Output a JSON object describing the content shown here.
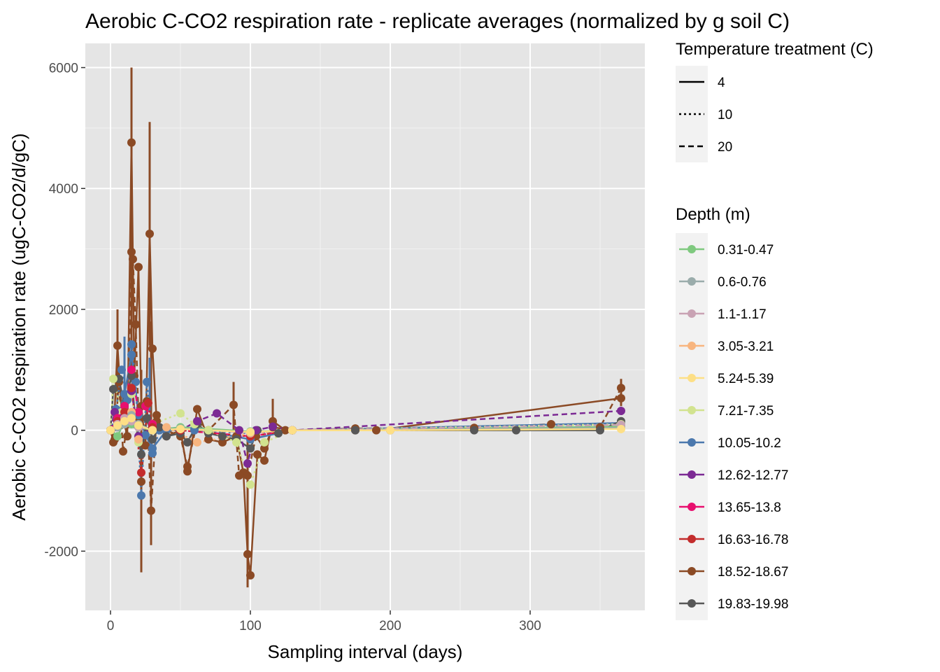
{
  "chart_data": {
    "type": "line",
    "title": "Aerobic C-CO2 respiration rate - replicate averages (normalized by g soil C)",
    "xlabel": "Sampling interval (days)",
    "ylabel": "Aerobic C-CO2 respiration rate (ugC-CO2/d/gC)",
    "xlim": [
      -18,
      382
    ],
    "ylim": [
      -2980,
      6400
    ],
    "x_ticks": [
      0,
      100,
      200,
      300
    ],
    "y_ticks": [
      -2000,
      0,
      2000,
      4000,
      6000
    ],
    "x_tick_labels": [
      "0",
      "100",
      "200",
      "300"
    ],
    "y_tick_labels": [
      "-2000",
      "0",
      "2000",
      "4000",
      "6000"
    ],
    "grid": true,
    "legend_position": "right",
    "linetype_legend": {
      "title": "Temperature treatment (C)",
      "entries": [
        {
          "label": "4",
          "dash": "solid"
        },
        {
          "label": "10",
          "dash": "dotted"
        },
        {
          "label": "20",
          "dash": "dashed"
        }
      ]
    },
    "color_legend": {
      "title": "Depth (m)",
      "entries": [
        {
          "label": "0.31-0.47",
          "color": "#7fc97f"
        },
        {
          "label": "0.6-0.76",
          "color": "#9aacab"
        },
        {
          "label": "1.1-1.17",
          "color": "#c9a3b4"
        },
        {
          "label": "3.05-3.21",
          "color": "#f8b57f"
        },
        {
          "label": "5.24-5.39",
          "color": "#fddf86"
        },
        {
          "label": "7.21-7.35",
          "color": "#d2e38f"
        },
        {
          "label": "10.05-10.2",
          "color": "#4b78ad"
        },
        {
          "label": "12.62-12.77",
          "color": "#7c2a94"
        },
        {
          "label": "13.65-13.8",
          "color": "#e8106f"
        },
        {
          "label": "16.63-16.78",
          "color": "#c32c2c"
        },
        {
          "label": "18.52-18.67",
          "color": "#8b4a25"
        },
        {
          "label": "19.83-19.98",
          "color": "#575757"
        }
      ]
    },
    "series": [
      {
        "name": "18.52-18.67",
        "temperature": "4",
        "color": "#8b4a25",
        "x": [
          0,
          2,
          5,
          8,
          12,
          15,
          17,
          20,
          22,
          25,
          28,
          30,
          33,
          40,
          50,
          55,
          62,
          70,
          80,
          90,
          95,
          98,
          100,
          105,
          110,
          116,
          125,
          130,
          175,
          190,
          365
        ],
        "y": [
          0,
          -200,
          1400,
          300,
          -100,
          4760,
          900,
          2700,
          400,
          -250,
          3250,
          1350,
          150,
          -100,
          0,
          -680,
          350,
          -150,
          -200,
          -100,
          -700,
          -2050,
          -2400,
          -400,
          -500,
          150,
          0,
          0,
          0,
          0,
          530
        ]
      },
      {
        "name": "18.52-18.67",
        "temperature": "20",
        "color": "#8b4a25",
        "x": [
          0,
          3,
          6,
          9,
          12,
          15,
          16,
          18,
          20,
          22,
          26,
          29,
          33,
          40,
          50,
          55,
          62,
          70,
          88,
          92,
          98,
          104,
          110,
          116,
          130,
          175,
          260,
          315,
          350,
          365
        ],
        "y": [
          0,
          -150,
          800,
          -350,
          100,
          2950,
          2830,
          1750,
          200,
          -850,
          480,
          -1330,
          250,
          0,
          -100,
          -600,
          150,
          0,
          420,
          -750,
          -750,
          -100,
          -300,
          50,
          0,
          30,
          40,
          100,
          50,
          700
        ]
      },
      {
        "name": "10.05-10.2",
        "temperature": "10",
        "color": "#4b78ad",
        "x": [
          0,
          4,
          8,
          12,
          15,
          18,
          22,
          26,
          30,
          35,
          60,
          100,
          130,
          365
        ],
        "y": [
          0,
          350,
          1000,
          500,
          1420,
          800,
          -1080,
          800,
          -380,
          0,
          0,
          -50,
          0,
          100
        ]
      },
      {
        "name": "10.05-10.2",
        "temperature": "4",
        "color": "#4b78ad",
        "x": [
          0,
          5,
          10,
          15,
          20,
          25,
          30,
          40,
          60,
          100,
          130,
          365
        ],
        "y": [
          0,
          200,
          600,
          1250,
          250,
          -80,
          -300,
          0,
          20,
          -150,
          0,
          120
        ]
      },
      {
        "name": "19.83-19.98",
        "temperature": "4",
        "color": "#575757",
        "x": [
          0,
          2,
          6,
          10,
          15,
          18,
          22,
          26,
          30,
          35,
          40,
          50,
          55,
          62,
          70,
          80,
          90,
          100,
          105,
          120,
          130,
          175,
          200,
          260,
          290,
          350,
          365
        ],
        "y": [
          0,
          680,
          850,
          400,
          900,
          100,
          -400,
          200,
          -150,
          50,
          -100,
          -50,
          -200,
          100,
          -50,
          -100,
          -150,
          -300,
          0,
          -50,
          0,
          0,
          0,
          0,
          0,
          0,
          150
        ]
      },
      {
        "name": "7.21-7.35",
        "temperature": "10",
        "color": "#d2e38f",
        "x": [
          0,
          2,
          8,
          15,
          20,
          30,
          50,
          60,
          70,
          90,
          100,
          110,
          130,
          365
        ],
        "y": [
          0,
          850,
          300,
          600,
          -200,
          100,
          280,
          100,
          0,
          -200,
          -900,
          -200,
          0,
          100
        ]
      },
      {
        "name": "12.62-12.77",
        "temperature": "20",
        "color": "#7c2a94",
        "x": [
          0,
          3,
          8,
          15,
          20,
          30,
          50,
          62,
          76,
          92,
          98,
          104,
          116,
          130,
          365
        ],
        "y": [
          0,
          300,
          200,
          650,
          -100,
          50,
          0,
          150,
          280,
          0,
          -550,
          0,
          60,
          0,
          320
        ]
      },
      {
        "name": "13.65-13.8",
        "temperature": "20",
        "color": "#e8106f",
        "x": [
          0,
          5,
          10,
          15,
          20,
          25,
          30,
          50,
          100,
          130,
          365
        ],
        "y": [
          0,
          200,
          400,
          1000,
          300,
          400,
          100,
          0,
          -100,
          0,
          50
        ]
      },
      {
        "name": "16.63-16.78",
        "temperature": "10",
        "color": "#c32c2c",
        "x": [
          0,
          5,
          10,
          15,
          22,
          27,
          30,
          50,
          100,
          130,
          365
        ],
        "y": [
          0,
          150,
          300,
          700,
          -700,
          450,
          50,
          0,
          -100,
          0,
          60
        ]
      },
      {
        "name": "3.05-3.21",
        "temperature": "10",
        "color": "#f8b57f",
        "x": [
          0,
          5,
          10,
          15,
          20,
          30,
          40,
          62,
          100,
          130,
          200,
          365
        ],
        "y": [
          0,
          100,
          200,
          300,
          -150,
          0,
          50,
          -200,
          -50,
          0,
          0,
          30
        ]
      },
      {
        "name": "0.31-0.47",
        "temperature": "4",
        "color": "#7fc97f",
        "x": [
          0,
          5,
          10,
          15,
          20,
          30,
          50,
          100,
          130,
          365
        ],
        "y": [
          0,
          -100,
          150,
          100,
          50,
          0,
          50,
          -20,
          0,
          60
        ]
      },
      {
        "name": "0.6-0.76",
        "temperature": "4",
        "color": "#9aacab",
        "x": [
          0,
          5,
          10,
          15,
          20,
          30,
          50,
          100,
          130,
          365
        ],
        "y": [
          0,
          50,
          100,
          250,
          100,
          0,
          30,
          -30,
          0,
          40
        ]
      },
      {
        "name": "1.1-1.17",
        "temperature": "20",
        "color": "#c9a3b4",
        "x": [
          0,
          5,
          10,
          15,
          20,
          30,
          50,
          100,
          130,
          365
        ],
        "y": [
          0,
          100,
          200,
          150,
          50,
          0,
          20,
          -40,
          0,
          90
        ]
      },
      {
        "name": "5.24-5.39",
        "temperature": "4",
        "color": "#fddf86",
        "x": [
          0,
          5,
          10,
          15,
          20,
          30,
          50,
          100,
          130,
          200,
          365
        ],
        "y": [
          0,
          80,
          150,
          200,
          80,
          0,
          20,
          -30,
          0,
          0,
          20
        ]
      }
    ],
    "error_bars": [
      {
        "x": 15,
        "low": 800,
        "high": 6000,
        "color": "#8b4a25"
      },
      {
        "x": 28,
        "low": 1400,
        "high": 5100,
        "color": "#8b4a25"
      },
      {
        "x": 22,
        "low": -2350,
        "high": 1000,
        "color": "#8b4a25"
      },
      {
        "x": 29,
        "low": -1900,
        "high": 1800,
        "color": "#8b4a25"
      },
      {
        "x": 5,
        "low": 500,
        "high": 2000,
        "color": "#8b4a25"
      },
      {
        "x": 98,
        "low": -2600,
        "high": 0,
        "color": "#8b4a25"
      },
      {
        "x": 10,
        "low": 200,
        "high": 1550,
        "color": "#4b78ad"
      },
      {
        "x": 28,
        "low": 300,
        "high": 1200,
        "color": "#4b78ad"
      },
      {
        "x": 88,
        "low": 0,
        "high": 800,
        "color": "#8b4a25"
      },
      {
        "x": 116,
        "low": 0,
        "high": 520,
        "color": "#8b4a25"
      },
      {
        "x": 365,
        "low": 400,
        "high": 850,
        "color": "#8b4a25"
      }
    ]
  }
}
